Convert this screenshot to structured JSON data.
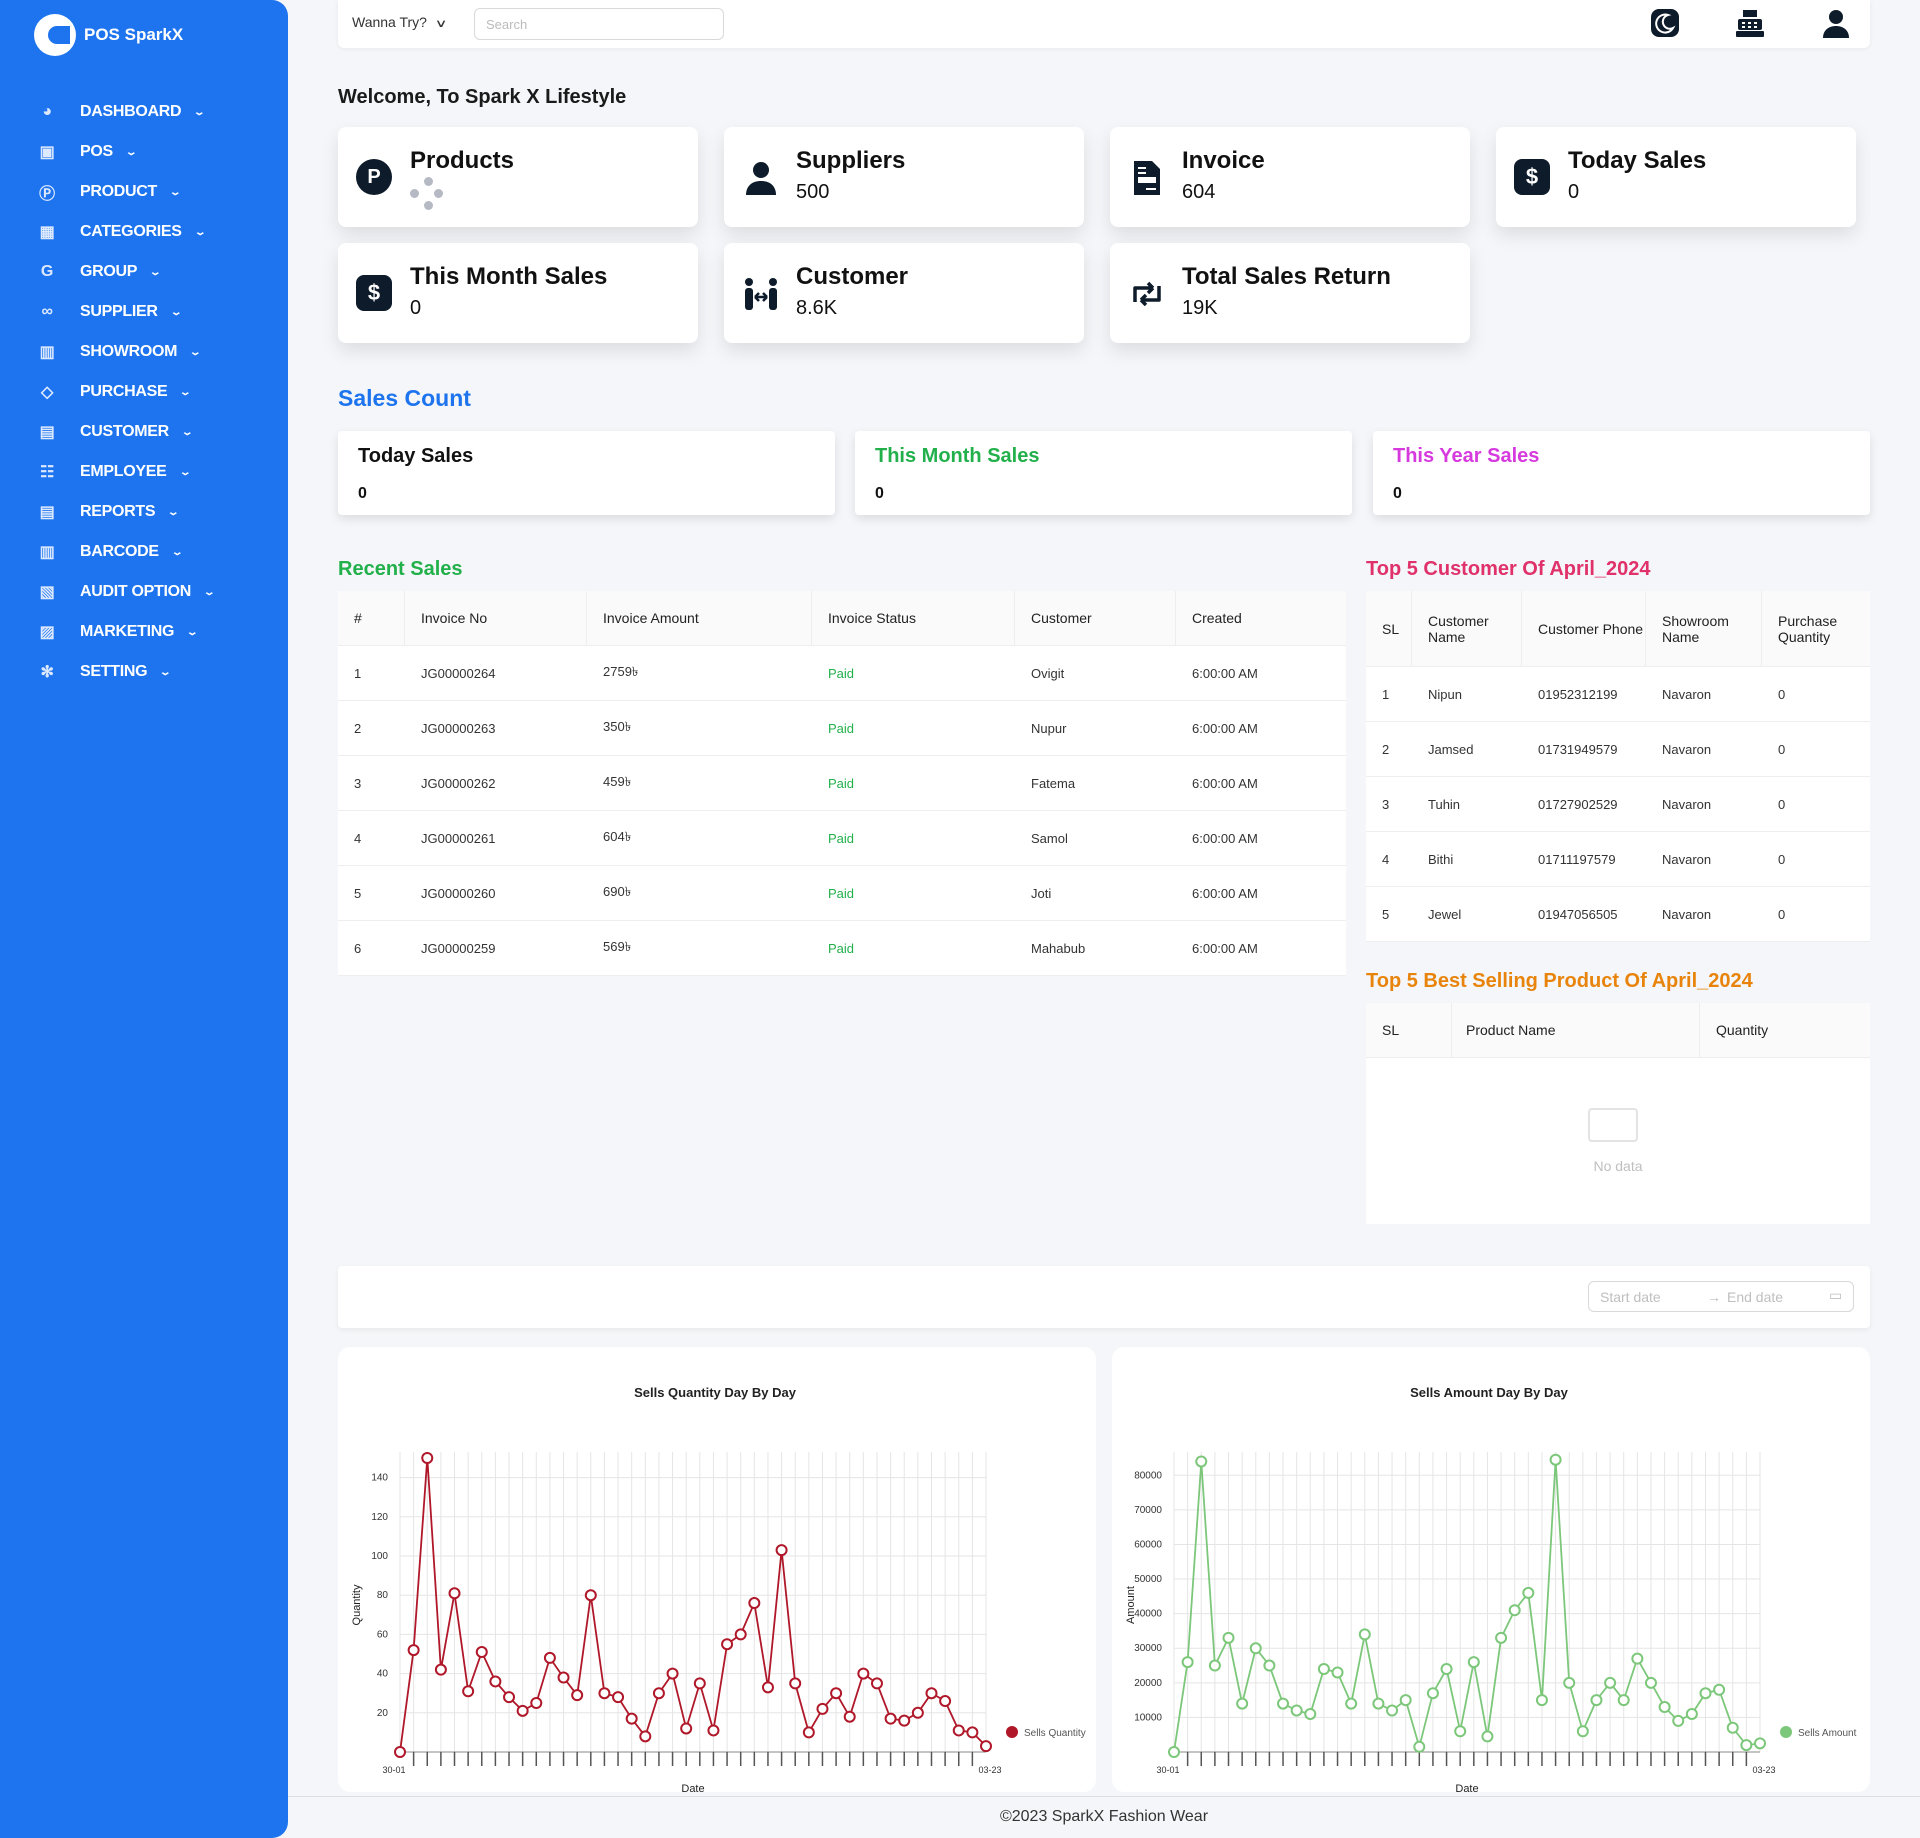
{
  "brand": {
    "name": "POS SparkX"
  },
  "sidebar": {
    "items": [
      {
        "label": "DASHBOARD",
        "icon": "palette-icon"
      },
      {
        "label": "POS",
        "icon": "pos-icon"
      },
      {
        "label": "PRODUCT",
        "icon": "product-p-icon"
      },
      {
        "label": "CATEGORIES",
        "icon": "grid-icon"
      },
      {
        "label": "GROUP",
        "icon": "group-g-icon"
      },
      {
        "label": "SUPPLIER",
        "icon": "handshake-icon"
      },
      {
        "label": "SHOWROOM",
        "icon": "building-icon"
      },
      {
        "label": "PURCHASE",
        "icon": "tag-icon"
      },
      {
        "label": "CUSTOMER",
        "icon": "contact-icon"
      },
      {
        "label": "EMPLOYEE",
        "icon": "people-icon"
      },
      {
        "label": "REPORTS",
        "icon": "report-icon"
      },
      {
        "label": "BARCODE",
        "icon": "barcode-icon"
      },
      {
        "label": "AUDIT OPTION",
        "icon": "audit-icon"
      },
      {
        "label": "MARKETING",
        "icon": "marketing-icon"
      },
      {
        "label": "SETTING",
        "icon": "gear-icon"
      }
    ]
  },
  "topbar": {
    "wanna": "Wanna Try?",
    "search_placeholder": "Search"
  },
  "welcome": "Welcome, To Spark X Lifestyle",
  "stats": [
    {
      "title": "Products",
      "value": "",
      "icon": "product-p-icon"
    },
    {
      "title": "Suppliers",
      "value": "500",
      "icon": "user-icon"
    },
    {
      "title": "Invoice",
      "value": "604",
      "icon": "invoice-icon"
    },
    {
      "title": "Today Sales",
      "value": "0",
      "icon": "dollar-icon"
    },
    {
      "title": "This Month Sales",
      "value": "0",
      "icon": "dollar-icon"
    },
    {
      "title": "Customer",
      "value": "8.6K",
      "icon": "people-arrows-icon"
    },
    {
      "title": "Total Sales Return",
      "value": "19K",
      "icon": "retweet-icon"
    }
  ],
  "sales_count": {
    "title": "Sales Count",
    "items": [
      {
        "label": "Today Sales",
        "value": "0",
        "color": "#111111"
      },
      {
        "label": "This Month Sales",
        "value": "0",
        "color": "#22b04b"
      },
      {
        "label": "This Year Sales",
        "value": "0",
        "color": "#d63adf"
      }
    ]
  },
  "recent_sales": {
    "title": "Recent Sales",
    "columns": [
      "#",
      "Invoice No",
      "Invoice Amount",
      "Invoice Status",
      "Customer",
      "Created"
    ],
    "rows": [
      [
        "1",
        "JG00000264",
        "2759৳",
        "Paid",
        "Ovigit",
        "6:00:00 AM"
      ],
      [
        "2",
        "JG00000263",
        "350৳",
        "Paid",
        "Nupur",
        "6:00:00 AM"
      ],
      [
        "3",
        "JG00000262",
        "459৳",
        "Paid",
        "Fatema",
        "6:00:00 AM"
      ],
      [
        "4",
        "JG00000261",
        "604৳",
        "Paid",
        "Samol",
        "6:00:00 AM"
      ],
      [
        "5",
        "JG00000260",
        "690৳",
        "Paid",
        "Joti",
        "6:00:00 AM"
      ],
      [
        "6",
        "JG00000259",
        "569৳",
        "Paid",
        "Mahabub",
        "6:00:00 AM"
      ]
    ]
  },
  "top_customers": {
    "title": "Top 5 Customer Of April_2024",
    "columns": [
      "SL",
      "Customer Name",
      "Customer Phone",
      "Showroom Name",
      "Purchase Quantity"
    ],
    "rows": [
      [
        "1",
        "Nipun",
        "01952312199",
        "Navaron",
        "0"
      ],
      [
        "2",
        "Jamsed",
        "01731949579",
        "Navaron",
        "0"
      ],
      [
        "3",
        "Tuhin",
        "01727902529",
        "Navaron",
        "0"
      ],
      [
        "4",
        "Bithi",
        "01711197579",
        "Navaron",
        "0"
      ],
      [
        "5",
        "Jewel",
        "01947056505",
        "Navaron",
        "0"
      ]
    ]
  },
  "top_products": {
    "title": "Top 5 Best Selling Product Of April_2024",
    "columns": [
      "SL",
      "Product Name",
      "Quantity"
    ],
    "empty_text": "No data"
  },
  "date_range": {
    "start_placeholder": "Start date",
    "end_placeholder": "End date"
  },
  "chart_data": [
    {
      "type": "line",
      "title": "Sells Quantity Day By Day",
      "xlabel": "Date",
      "ylabel": "Quantity",
      "ylim": [
        0,
        150
      ],
      "yticks": [
        20,
        40,
        60,
        80,
        100,
        120,
        140
      ],
      "x_first": "30-01",
      "x_last": "03-23",
      "legend": "right",
      "color": "#b0182a",
      "series": [
        {
          "name": "Sells Quantity",
          "values": [
            0,
            52,
            150,
            42,
            81,
            31,
            51,
            36,
            28,
            21,
            25,
            48,
            38,
            29,
            80,
            30,
            28,
            17,
            8,
            30,
            40,
            12,
            35,
            11,
            55,
            60,
            76,
            33,
            103,
            35,
            10,
            22,
            30,
            18,
            40,
            35,
            17,
            16,
            20,
            30,
            26,
            11,
            10,
            3
          ]
        }
      ]
    },
    {
      "type": "line",
      "title": "Sells Amount Day By Day",
      "xlabel": "Date",
      "ylabel": "Amount",
      "ylim": [
        0,
        85000
      ],
      "yticks": [
        10000,
        20000,
        30000,
        40000,
        50000,
        60000,
        70000,
        80000
      ],
      "x_first": "30-01",
      "x_last": "03-23",
      "legend": "right",
      "color": "#7cc77a",
      "series": [
        {
          "name": "Sells Amount",
          "values": [
            0,
            26000,
            84000,
            25000,
            33000,
            14000,
            30000,
            25000,
            14000,
            12000,
            11000,
            24000,
            23000,
            14000,
            34000,
            14000,
            12000,
            15000,
            1500,
            17000,
            24000,
            6000,
            26000,
            4500,
            33000,
            41000,
            46000,
            15000,
            84500,
            20000,
            6000,
            15000,
            20000,
            15000,
            27000,
            20000,
            13000,
            9000,
            11000,
            17000,
            18000,
            7000,
            2000,
            2500
          ]
        }
      ]
    }
  ],
  "footer": "©2023 SparkX Fashion Wear"
}
